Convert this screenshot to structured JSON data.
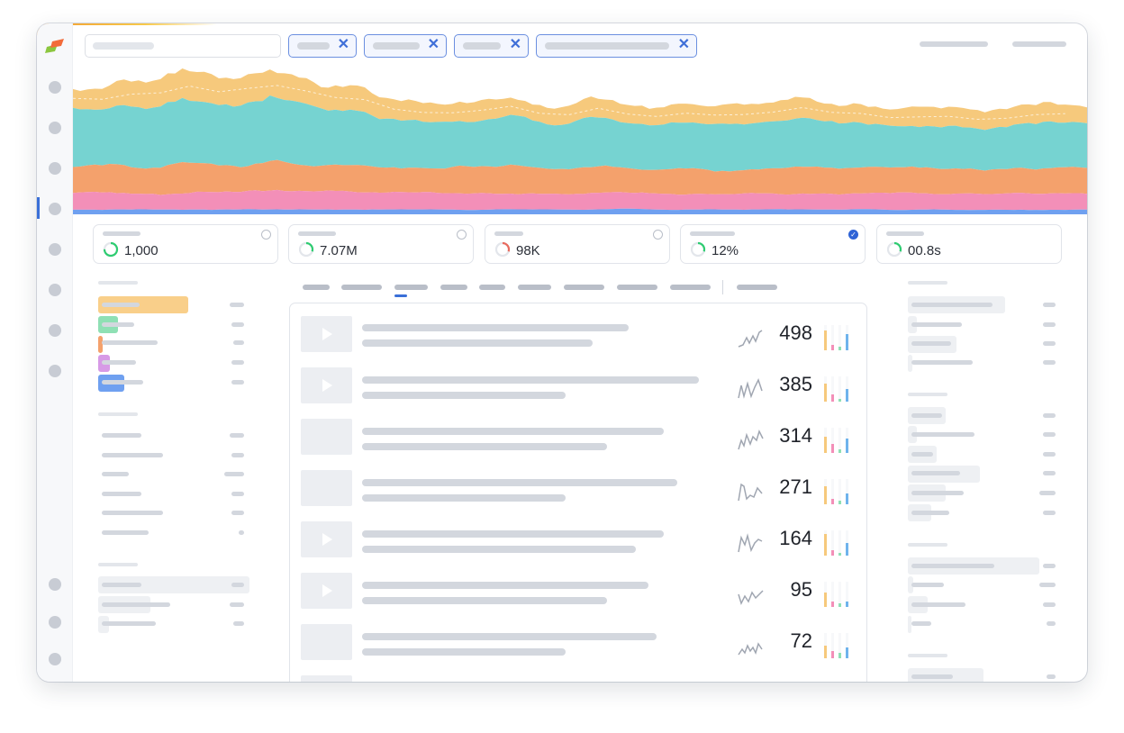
{
  "kpis": [
    {
      "value": "1,000",
      "ring_color": "#2ecc71",
      "ring_fraction": 0.75,
      "checked": false
    },
    {
      "value": "7.07M",
      "ring_color": "#2ecc71",
      "ring_fraction": 0.3,
      "checked": false
    },
    {
      "value": "98K",
      "ring_color": "#e86b5f",
      "ring_fraction": 0.3,
      "checked": false
    },
    {
      "value": "12%",
      "ring_color": "#2ecc71",
      "ring_fraction": 0.3,
      "checked": true
    },
    {
      "value": "00.8s",
      "ring_color": "#2ecc71",
      "ring_fraction": 0.3,
      "checked": false
    }
  ],
  "list_rows": [
    {
      "value": "498",
      "has_play": true
    },
    {
      "value": "385",
      "has_play": true
    },
    {
      "value": "314",
      "has_play": false
    },
    {
      "value": "271",
      "has_play": false
    },
    {
      "value": "164",
      "has_play": true
    },
    {
      "value": "95",
      "has_play": true
    },
    {
      "value": "72",
      "has_play": false
    }
  ],
  "colors": {
    "accent": "#3a6fd8",
    "series_yellow": "#f6c97c",
    "series_teal": "#76d3d1",
    "series_orange": "#f4a16c",
    "series_pink": "#f38fb8",
    "series_blue": "#6fa0f0"
  },
  "icons": [
    "logo-icon",
    "close-icon",
    "play-icon",
    "check-icon",
    "progress-ring-icon",
    "sparkline-icon",
    "mini-bar-icon"
  ]
}
